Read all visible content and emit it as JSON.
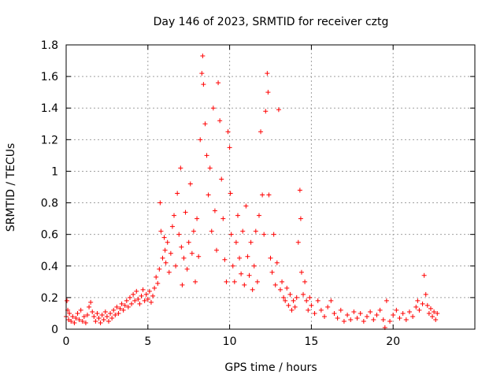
{
  "chart_data": {
    "type": "scatter",
    "title": "Day 146 of 2023, SRMTID for receiver cztg",
    "xlabel": "GPS time / hours",
    "ylabel": "SRMTID / TECUs",
    "xlim": [
      0,
      25.0
    ],
    "ylim": [
      0,
      1.8
    ],
    "xticks": [
      0,
      5,
      10,
      15,
      20
    ],
    "yticks": [
      0,
      0.2,
      0.4,
      0.6,
      0.8,
      1,
      1.2,
      1.4,
      1.6,
      1.8
    ],
    "xtick_labels": [
      "0",
      "5",
      "10",
      "15",
      "20"
    ],
    "ytick_labels": [
      "0",
      "0.2",
      "0.4",
      "0.6",
      "0.8",
      "1",
      "1.2",
      "1.4",
      "1.6",
      "1.8"
    ],
    "grid": true,
    "marker": "plus",
    "color": "#ff0000",
    "series": [
      {
        "name": "SRMTID",
        "points": [
          [
            0.0,
            0.08
          ],
          [
            0.05,
            0.18
          ],
          [
            0.1,
            0.12
          ],
          [
            0.15,
            0.06
          ],
          [
            0.2,
            0.1
          ],
          [
            0.3,
            0.05
          ],
          [
            0.4,
            0.08
          ],
          [
            0.5,
            0.04
          ],
          [
            0.6,
            0.07
          ],
          [
            0.7,
            0.1
          ],
          [
            0.8,
            0.06
          ],
          [
            0.9,
            0.12
          ],
          [
            1.0,
            0.05
          ],
          [
            1.1,
            0.08
          ],
          [
            1.2,
            0.04
          ],
          [
            1.3,
            0.09
          ],
          [
            1.4,
            0.14
          ],
          [
            1.5,
            0.17
          ],
          [
            1.6,
            0.11
          ],
          [
            1.7,
            0.08
          ],
          [
            1.8,
            0.05
          ],
          [
            1.9,
            0.1
          ],
          [
            2.0,
            0.07
          ],
          [
            2.1,
            0.04
          ],
          [
            2.2,
            0.09
          ],
          [
            2.3,
            0.06
          ],
          [
            2.4,
            0.11
          ],
          [
            2.5,
            0.08
          ],
          [
            2.6,
            0.05
          ],
          [
            2.7,
            0.1
          ],
          [
            2.8,
            0.07
          ],
          [
            2.9,
            0.12
          ],
          [
            3.0,
            0.09
          ],
          [
            3.1,
            0.14
          ],
          [
            3.2,
            0.1
          ],
          [
            3.3,
            0.13
          ],
          [
            3.4,
            0.16
          ],
          [
            3.5,
            0.12
          ],
          [
            3.6,
            0.15
          ],
          [
            3.7,
            0.18
          ],
          [
            3.8,
            0.14
          ],
          [
            3.9,
            0.2
          ],
          [
            4.0,
            0.16
          ],
          [
            4.1,
            0.22
          ],
          [
            4.2,
            0.18
          ],
          [
            4.3,
            0.24
          ],
          [
            4.4,
            0.19
          ],
          [
            4.5,
            0.16
          ],
          [
            4.6,
            0.21
          ],
          [
            4.7,
            0.25
          ],
          [
            4.8,
            0.18
          ],
          [
            4.9,
            0.22
          ],
          [
            5.0,
            0.19
          ],
          [
            5.1,
            0.24
          ],
          [
            5.2,
            0.17
          ],
          [
            5.3,
            0.21
          ],
          [
            5.4,
            0.26
          ],
          [
            5.5,
            0.33
          ],
          [
            5.6,
            0.29
          ],
          [
            5.7,
            0.38
          ],
          [
            5.75,
            0.8
          ],
          [
            5.8,
            0.62
          ],
          [
            5.9,
            0.45
          ],
          [
            6.0,
            0.58
          ],
          [
            6.05,
            0.5
          ],
          [
            6.1,
            0.42
          ],
          [
            6.2,
            0.55
          ],
          [
            6.3,
            0.36
          ],
          [
            6.4,
            0.48
          ],
          [
            6.5,
            0.65
          ],
          [
            6.6,
            0.72
          ],
          [
            6.7,
            0.4
          ],
          [
            6.8,
            0.86
          ],
          [
            6.9,
            0.6
          ],
          [
            7.0,
            1.02
          ],
          [
            7.05,
            0.52
          ],
          [
            7.1,
            0.28
          ],
          [
            7.2,
            0.45
          ],
          [
            7.3,
            0.74
          ],
          [
            7.4,
            0.38
          ],
          [
            7.5,
            0.55
          ],
          [
            7.6,
            0.92
          ],
          [
            7.7,
            0.48
          ],
          [
            7.8,
            0.62
          ],
          [
            7.9,
            0.3
          ],
          [
            8.0,
            0.7
          ],
          [
            8.1,
            0.46
          ],
          [
            8.2,
            1.2
          ],
          [
            8.3,
            1.62
          ],
          [
            8.35,
            1.73
          ],
          [
            8.4,
            1.55
          ],
          [
            8.5,
            1.3
          ],
          [
            8.6,
            1.1
          ],
          [
            8.7,
            0.85
          ],
          [
            8.8,
            1.02
          ],
          [
            8.9,
            0.62
          ],
          [
            9.0,
            1.4
          ],
          [
            9.1,
            0.75
          ],
          [
            9.2,
            0.5
          ],
          [
            9.3,
            1.56
          ],
          [
            9.4,
            1.32
          ],
          [
            9.5,
            0.95
          ],
          [
            9.6,
            0.7
          ],
          [
            9.7,
            0.44
          ],
          [
            9.8,
            0.3
          ],
          [
            9.9,
            1.25
          ],
          [
            10.0,
            1.15
          ],
          [
            10.05,
            0.86
          ],
          [
            10.1,
            0.6
          ],
          [
            10.2,
            0.4
          ],
          [
            10.3,
            0.3
          ],
          [
            10.4,
            0.55
          ],
          [
            10.5,
            0.72
          ],
          [
            10.6,
            0.45
          ],
          [
            10.7,
            0.35
          ],
          [
            10.8,
            0.62
          ],
          [
            10.9,
            0.28
          ],
          [
            11.0,
            0.78
          ],
          [
            11.1,
            0.46
          ],
          [
            11.2,
            0.34
          ],
          [
            11.3,
            0.55
          ],
          [
            11.4,
            0.25
          ],
          [
            11.5,
            0.4
          ],
          [
            11.6,
            0.62
          ],
          [
            11.7,
            0.3
          ],
          [
            11.8,
            0.72
          ],
          [
            11.9,
            1.25
          ],
          [
            12.0,
            0.85
          ],
          [
            12.1,
            0.6
          ],
          [
            12.2,
            1.38
          ],
          [
            12.3,
            1.62
          ],
          [
            12.35,
            1.5
          ],
          [
            12.4,
            0.85
          ],
          [
            12.5,
            0.45
          ],
          [
            12.6,
            0.36
          ],
          [
            12.7,
            0.6
          ],
          [
            12.8,
            0.28
          ],
          [
            12.9,
            0.42
          ],
          [
            13.0,
            1.39
          ],
          [
            13.1,
            0.25
          ],
          [
            13.2,
            0.3
          ],
          [
            13.3,
            0.2
          ],
          [
            13.4,
            0.18
          ],
          [
            13.5,
            0.26
          ],
          [
            13.6,
            0.15
          ],
          [
            13.7,
            0.22
          ],
          [
            13.8,
            0.12
          ],
          [
            13.9,
            0.18
          ],
          [
            14.0,
            0.14
          ],
          [
            14.1,
            0.2
          ],
          [
            14.2,
            0.55
          ],
          [
            14.3,
            0.88
          ],
          [
            14.35,
            0.7
          ],
          [
            14.4,
            0.36
          ],
          [
            14.5,
            0.22
          ],
          [
            14.6,
            0.3
          ],
          [
            14.7,
            0.18
          ],
          [
            14.8,
            0.12
          ],
          [
            14.9,
            0.2
          ],
          [
            15.0,
            0.15
          ],
          [
            15.2,
            0.1
          ],
          [
            15.4,
            0.18
          ],
          [
            15.6,
            0.12
          ],
          [
            15.8,
            0.08
          ],
          [
            16.0,
            0.14
          ],
          [
            16.2,
            0.18
          ],
          [
            16.4,
            0.1
          ],
          [
            16.6,
            0.07
          ],
          [
            16.8,
            0.12
          ],
          [
            17.0,
            0.05
          ],
          [
            17.2,
            0.09
          ],
          [
            17.4,
            0.06
          ],
          [
            17.6,
            0.11
          ],
          [
            17.8,
            0.07
          ],
          [
            18.0,
            0.1
          ],
          [
            18.2,
            0.05
          ],
          [
            18.4,
            0.08
          ],
          [
            18.6,
            0.11
          ],
          [
            18.8,
            0.06
          ],
          [
            19.0,
            0.09
          ],
          [
            19.2,
            0.12
          ],
          [
            19.4,
            0.06
          ],
          [
            19.5,
            0.01
          ],
          [
            19.6,
            0.18
          ],
          [
            19.8,
            0.05
          ],
          [
            20.0,
            0.09
          ],
          [
            20.2,
            0.12
          ],
          [
            20.4,
            0.07
          ],
          [
            20.6,
            0.1
          ],
          [
            20.8,
            0.06
          ],
          [
            21.0,
            0.11
          ],
          [
            21.2,
            0.08
          ],
          [
            21.4,
            0.14
          ],
          [
            21.5,
            0.18
          ],
          [
            21.6,
            0.12
          ],
          [
            21.8,
            0.16
          ],
          [
            21.9,
            0.34
          ],
          [
            22.0,
            0.22
          ],
          [
            22.1,
            0.15
          ],
          [
            22.2,
            0.1
          ],
          [
            22.3,
            0.13
          ],
          [
            22.4,
            0.08
          ],
          [
            22.5,
            0.11
          ],
          [
            22.6,
            0.06
          ],
          [
            22.7,
            0.1
          ]
        ]
      }
    ]
  }
}
